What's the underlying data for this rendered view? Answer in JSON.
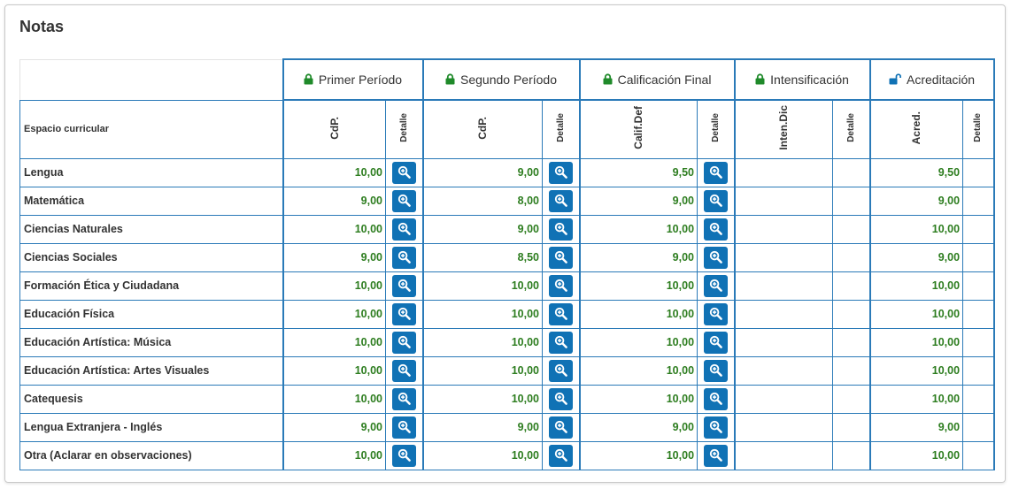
{
  "panel": {
    "title": "Notas"
  },
  "groups": [
    {
      "label": "Primer Período",
      "icon": "lock-closed-icon",
      "color": "#1f8a2a"
    },
    {
      "label": "Segundo Período",
      "icon": "lock-closed-icon",
      "color": "#1f8a2a"
    },
    {
      "label": "Calificación Final",
      "icon": "lock-closed-icon",
      "color": "#1f8a2a"
    },
    {
      "label": "Intensificación",
      "icon": "lock-closed-icon",
      "color": "#1f8a2a"
    },
    {
      "label": "Acreditación",
      "icon": "lock-open-icon",
      "color": "#1072b5"
    }
  ],
  "subheaders": {
    "subject": "Espacio curricular",
    "cols": [
      "CdP.",
      "Detalle",
      "CdP.",
      "Detalle",
      "Calif.Def",
      "Detalle",
      "Inten.Dic",
      "Detalle",
      "Acred.",
      "Detalle"
    ]
  },
  "colors": {
    "grade": "#2d7d1f",
    "button": "#1072b5",
    "border": "#2a7ab8"
  },
  "rows": [
    {
      "subject": "Lengua",
      "p1": "10,00",
      "p2": "9,00",
      "final": "9,50",
      "inten": "",
      "acred": "9,50"
    },
    {
      "subject": "Matemática",
      "p1": "9,00",
      "p2": "8,00",
      "final": "9,00",
      "inten": "",
      "acred": "9,00"
    },
    {
      "subject": "Ciencias Naturales",
      "p1": "10,00",
      "p2": "9,00",
      "final": "10,00",
      "inten": "",
      "acred": "10,00"
    },
    {
      "subject": "Ciencias Sociales",
      "p1": "9,00",
      "p2": "8,50",
      "final": "9,00",
      "inten": "",
      "acred": "9,00"
    },
    {
      "subject": "Formación Ética y Ciudadana",
      "p1": "10,00",
      "p2": "10,00",
      "final": "10,00",
      "inten": "",
      "acred": "10,00"
    },
    {
      "subject": "Educación Física",
      "p1": "10,00",
      "p2": "10,00",
      "final": "10,00",
      "inten": "",
      "acred": "10,00"
    },
    {
      "subject": "Educación Artística: Música",
      "p1": "10,00",
      "p2": "10,00",
      "final": "10,00",
      "inten": "",
      "acred": "10,00"
    },
    {
      "subject": "Educación Artística: Artes Visuales",
      "p1": "10,00",
      "p2": "10,00",
      "final": "10,00",
      "inten": "",
      "acred": "10,00"
    },
    {
      "subject": "Catequesis",
      "p1": "10,00",
      "p2": "10,00",
      "final": "10,00",
      "inten": "",
      "acred": "10,00"
    },
    {
      "subject": "Lengua Extranjera - Inglés",
      "p1": "9,00",
      "p2": "9,00",
      "final": "9,00",
      "inten": "",
      "acred": "9,00"
    },
    {
      "subject": "Otra (Aclarar en observaciones)",
      "p1": "10,00",
      "p2": "10,00",
      "final": "10,00",
      "inten": "",
      "acred": "10,00"
    }
  ]
}
